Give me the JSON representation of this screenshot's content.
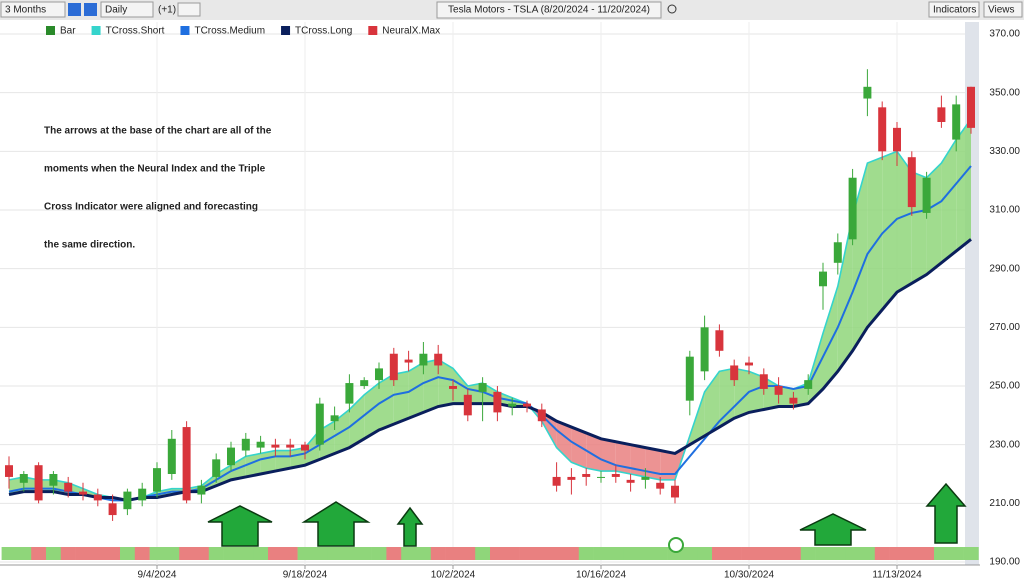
{
  "toolbar": {
    "range": "3 Months",
    "interval": "Daily",
    "offset": "(+1)",
    "symbol": "Tesla Motors - TSLA (8/20/2024 - 11/20/2024)",
    "indicators": "Indicators",
    "views": "Views"
  },
  "chart_data": {
    "type": "candlestick",
    "annotation": [
      "The arrows at the base of the chart are all of the",
      "moments when the Neural Index and the Triple",
      "Cross Indicator were aligned and forecasting",
      "the same direction."
    ],
    "legend": [
      "Bar"
    ],
    "up_color": "#3aa83a",
    "down_color": "#d8343c",
    "open": [
      223,
      217,
      223,
      216,
      217,
      214,
      213,
      210,
      208,
      211,
      214,
      220,
      236,
      213,
      219,
      223,
      228,
      229,
      230,
      230,
      230,
      230,
      238,
      244,
      250,
      252,
      261,
      259,
      257,
      261,
      250,
      247,
      248,
      248,
      243,
      244,
      242,
      219,
      219,
      220,
      219,
      220,
      218,
      218,
      217,
      216,
      245,
      255,
      269,
      257,
      258,
      254,
      250,
      246,
      249,
      284,
      292,
      300,
      348,
      345,
      338,
      328,
      309,
      345,
      334,
      352
    ],
    "high": [
      226,
      221,
      224,
      221,
      219,
      217,
      215,
      213,
      215,
      217,
      224,
      235,
      238,
      218,
      227,
      231,
      234,
      233,
      232,
      232,
      231,
      246,
      243,
      254,
      253,
      258,
      263,
      262,
      265,
      264,
      252,
      249,
      253,
      250,
      246,
      245,
      244,
      224,
      222,
      222,
      221,
      223,
      220,
      222,
      219,
      218,
      262,
      274,
      271,
      259,
      260,
      256,
      253,
      248,
      254,
      292,
      302,
      324,
      358,
      347,
      340,
      330,
      323,
      349,
      349,
      352
    ],
    "low": [
      215,
      214,
      210,
      213,
      212,
      211,
      209,
      204,
      206,
      209,
      212,
      218,
      210,
      210,
      217,
      221,
      226,
      227,
      226,
      226,
      225,
      228,
      235,
      241,
      249,
      249,
      250,
      255,
      254,
      254,
      245,
      238,
      238,
      238,
      240,
      241,
      236,
      214,
      213,
      216,
      217,
      217,
      214,
      215,
      213,
      210,
      240,
      252,
      260,
      250,
      254,
      247,
      244,
      242,
      247,
      276,
      288,
      298,
      342,
      327,
      325,
      308,
      307,
      338,
      330,
      336
    ],
    "close": [
      219,
      220,
      211,
      220,
      214,
      213,
      211,
      206,
      214,
      215,
      222,
      232,
      211,
      216,
      225,
      229,
      232,
      231,
      229,
      229,
      228,
      244,
      240,
      251,
      252,
      256,
      252,
      258,
      261,
      257,
      249,
      240,
      251,
      241,
      244,
      243,
      238,
      216,
      218,
      219,
      219,
      219,
      217,
      219,
      215,
      212,
      260,
      270,
      262,
      252,
      257,
      249,
      247,
      244,
      252,
      289,
      299,
      321,
      352,
      330,
      330,
      311,
      321,
      340,
      346,
      338
    ],
    "series": [
      {
        "name": "TCross.Short",
        "color": "#35d4cc",
        "values": [
          218,
          219,
          218,
          218,
          217,
          215,
          213,
          212,
          211,
          212,
          214,
          215,
          215,
          216,
          220,
          223,
          226,
          227,
          228,
          228,
          229,
          235,
          238,
          242,
          247,
          251,
          254,
          255,
          258,
          259,
          256,
          250,
          251,
          248,
          246,
          244,
          238,
          229,
          224,
          222,
          221,
          221,
          220,
          219,
          218,
          218,
          233,
          248,
          255,
          256,
          255,
          253,
          250,
          249,
          251,
          268,
          284,
          308,
          326,
          328,
          330,
          323,
          321,
          326,
          334,
          341
        ]
      },
      {
        "name": "TCross.Medium",
        "color": "#1f6fe0",
        "values": [
          214,
          215,
          215,
          215,
          214,
          213,
          212,
          211,
          211,
          212,
          213,
          214,
          214,
          215,
          218,
          221,
          223,
          225,
          226,
          226,
          227,
          230,
          233,
          236,
          240,
          244,
          247,
          248,
          251,
          253,
          252,
          249,
          248,
          246,
          245,
          244,
          240,
          235,
          231,
          228,
          225,
          223,
          222,
          221,
          220,
          220,
          226,
          232,
          238,
          243,
          248,
          250,
          250,
          249,
          250,
          260,
          270,
          282,
          295,
          302,
          307,
          309,
          310,
          313,
          319,
          325
        ]
      },
      {
        "name": "TCross.Long",
        "color": "#0a1f5c",
        "values": [
          213,
          214,
          214,
          214,
          213,
          213,
          212,
          212,
          211,
          212,
          212,
          213,
          214,
          214,
          216,
          218,
          219,
          220,
          221,
          222,
          223,
          225,
          227,
          229,
          232,
          235,
          237,
          239,
          241,
          243,
          244,
          244,
          244,
          244,
          243,
          243,
          241,
          238,
          236,
          234,
          232,
          231,
          230,
          229,
          228,
          227,
          230,
          233,
          236,
          239,
          241,
          242,
          243,
          243,
          244,
          249,
          255,
          262,
          270,
          276,
          282,
          285,
          288,
          292,
          296,
          300
        ]
      },
      {
        "name": "NeuralX.Max",
        "color": "#8fd67a",
        "down_color": "#e98080",
        "values": [
          1,
          1,
          -1,
          1,
          -1,
          -1,
          -1,
          -1,
          1,
          -1,
          1,
          1,
          -1,
          -1,
          1,
          1,
          1,
          1,
          -1,
          -1,
          1,
          1,
          1,
          1,
          1,
          1,
          -1,
          1,
          1,
          -1,
          -1,
          -1,
          1,
          -1,
          -1,
          -1,
          -1,
          -1,
          -1,
          1,
          1,
          1,
          1,
          1,
          1,
          1,
          1,
          1,
          -1,
          -1,
          -1,
          -1,
          -1,
          -1,
          1,
          1,
          1,
          1,
          1,
          -1,
          -1,
          -1,
          -1,
          1,
          1,
          1
        ]
      }
    ],
    "ylim": [
      190,
      370
    ],
    "yticks": [
      {
        "value": 190,
        "label": "190.00"
      },
      {
        "value": 210,
        "label": "210.00"
      },
      {
        "value": 230,
        "label": "230.00"
      },
      {
        "value": 250,
        "label": "250.00"
      },
      {
        "value": 270,
        "label": "270.00"
      },
      {
        "value": 290,
        "label": "290.00"
      },
      {
        "value": 310,
        "label": "310.00"
      },
      {
        "value": 330,
        "label": "330.00"
      },
      {
        "value": 350,
        "label": "350.00"
      },
      {
        "value": 370,
        "label": "370.00"
      }
    ],
    "xticks": [
      {
        "value": 10,
        "label": "9/4/2024"
      },
      {
        "value": 20,
        "label": "9/18/2024"
      },
      {
        "value": 30,
        "label": "10/2/2024"
      },
      {
        "value": 40,
        "label": "10/16/2024"
      },
      {
        "value": 50,
        "label": "10/30/2024"
      },
      {
        "value": 60,
        "label": "11/13/2024"
      }
    ],
    "grid": true
  }
}
